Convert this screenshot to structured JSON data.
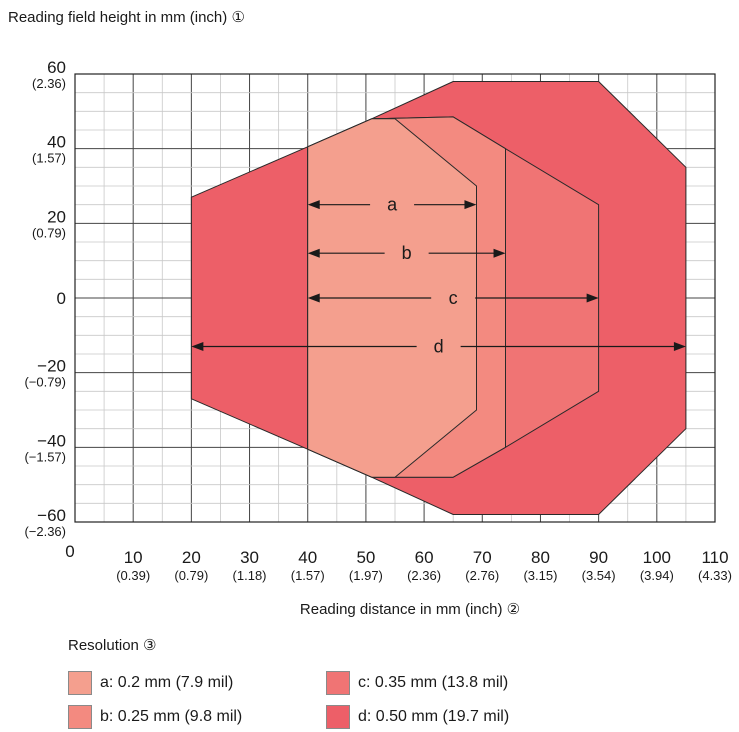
{
  "chart_data": {
    "type": "area",
    "ylabel": "Reading field height in mm (inch) ①",
    "xlabel": "Reading distance in mm (inch) ②",
    "xlim": [
      0,
      110
    ],
    "ylim": [
      -60,
      60
    ],
    "grid": true,
    "x_ticks": [
      {
        "value": 0,
        "label": "0",
        "sub": ""
      },
      {
        "value": 10,
        "label": "10",
        "sub": "(0.39)"
      },
      {
        "value": 20,
        "label": "20",
        "sub": "(0.79)"
      },
      {
        "value": 30,
        "label": "30",
        "sub": "(1.18)"
      },
      {
        "value": 40,
        "label": "40",
        "sub": "(1.57)"
      },
      {
        "value": 50,
        "label": "50",
        "sub": "(1.97)"
      },
      {
        "value": 60,
        "label": "60",
        "sub": "(2.36)"
      },
      {
        "value": 70,
        "label": "70",
        "sub": "(2.76)"
      },
      {
        "value": 80,
        "label": "80",
        "sub": "(3.15)"
      },
      {
        "value": 90,
        "label": "90",
        "sub": "(3.54)"
      },
      {
        "value": 100,
        "label": "100",
        "sub": "(3.94)"
      },
      {
        "value": 110,
        "label": "110",
        "sub": "(4.33)"
      }
    ],
    "y_ticks": [
      {
        "value": 60,
        "label": "60",
        "sub": "(2.36)"
      },
      {
        "value": 40,
        "label": "40",
        "sub": "(1.57)"
      },
      {
        "value": 20,
        "label": "20",
        "sub": "(0.79)"
      },
      {
        "value": 0,
        "label": "0",
        "sub": ""
      },
      {
        "value": -20,
        "label": "−20",
        "sub": "(−0.79)"
      },
      {
        "value": -40,
        "label": "−40",
        "sub": "(−1.57)"
      },
      {
        "value": -60,
        "label": "−60",
        "sub": "(−2.36)"
      }
    ],
    "series": [
      {
        "name": "d",
        "color": "#ed5f68",
        "points": [
          [
            20,
            27
          ],
          [
            40,
            40.5
          ],
          [
            51,
            48
          ],
          [
            65,
            58
          ],
          [
            90,
            58
          ],
          [
            105,
            35
          ],
          [
            105,
            -35
          ],
          [
            90,
            -58
          ],
          [
            65,
            -58
          ],
          [
            51,
            -48
          ],
          [
            40,
            -40.5
          ],
          [
            20,
            -27
          ]
        ]
      },
      {
        "name": "c",
        "color": "#f07474",
        "points": [
          [
            40,
            40.5
          ],
          [
            51,
            48
          ],
          [
            65,
            48.5
          ],
          [
            74,
            40
          ],
          [
            90,
            25
          ],
          [
            90,
            -25
          ],
          [
            74,
            -40
          ],
          [
            65,
            -48
          ],
          [
            51,
            -48
          ],
          [
            40,
            -40.5
          ]
        ]
      },
      {
        "name": "b",
        "color": "#f38a80",
        "points": [
          [
            40,
            40.5
          ],
          [
            51,
            48
          ],
          [
            65,
            48.5
          ],
          [
            74,
            40
          ],
          [
            74,
            -40
          ],
          [
            65,
            -48
          ],
          [
            51,
            -48
          ],
          [
            40,
            -40.5
          ]
        ]
      },
      {
        "name": "a",
        "color": "#f49f8e",
        "points": [
          [
            40,
            40.5
          ],
          [
            51,
            48
          ],
          [
            55,
            48
          ],
          [
            69,
            30
          ],
          [
            69,
            -30
          ],
          [
            55,
            -48
          ],
          [
            51,
            -48
          ],
          [
            40,
            -40.5
          ]
        ]
      }
    ],
    "dimensions": [
      {
        "name": "a",
        "label": "a",
        "x1": 40,
        "x2": 69,
        "y": 25
      },
      {
        "name": "b",
        "label": "b",
        "x1": 40,
        "x2": 74,
        "y": 12
      },
      {
        "name": "c",
        "label": "c",
        "x1": 40,
        "x2": 90,
        "y": 0
      },
      {
        "name": "d",
        "label": "d",
        "x1": 20,
        "x2": 105,
        "y": -13
      }
    ]
  },
  "legend": {
    "title": "Resolution ③",
    "items": [
      {
        "label": "a: 0.2 mm (7.9 mil)",
        "color": "#f49f8e"
      },
      {
        "label": "b: 0.25 mm (9.8 mil)",
        "color": "#f38a80"
      },
      {
        "label": "c: 0.35 mm (13.8 mil)",
        "color": "#f07474"
      },
      {
        "label": "d: 0.50 mm (19.7 mil)",
        "color": "#ed5f68"
      }
    ]
  }
}
